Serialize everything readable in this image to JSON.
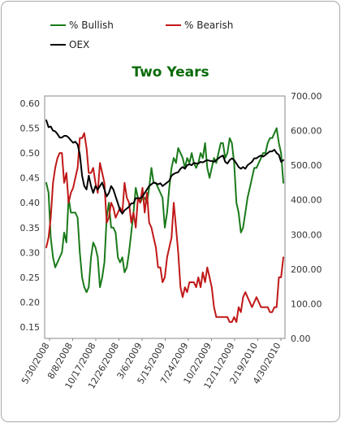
{
  "chart_data": {
    "type": "line",
    "title": "Two Years",
    "title_color": "#0a6b0a",
    "legend_position": "top-left",
    "grid": false,
    "x_tick_labels": [
      "5/30/2008",
      "8/8/2008",
      "10/17/2008",
      "12/26/2008",
      "3/6/2009",
      "5/15/2009",
      "7/24/2009",
      "10/2/2009",
      "12/11/2009",
      "2/19/2010",
      "4/30/2010"
    ],
    "y_left": {
      "lim": [
        0.15,
        0.6
      ],
      "ticks": [
        "0.60",
        "0.55",
        "0.50",
        "0.45",
        "0.40",
        "0.35",
        "0.30",
        "0.25",
        "0.20",
        "0.15"
      ]
    },
    "y_right": {
      "lim": [
        0,
        700
      ],
      "ticks": [
        "700.00",
        "600.00",
        "500.00",
        "400.00",
        "300.00",
        "200.00",
        "100.00",
        "0.00"
      ]
    },
    "x_week_range": [
      0,
      106
    ],
    "series": [
      {
        "name": "% Bullish",
        "color": "#1a7a1a",
        "axis": "left",
        "x": [
          0,
          1,
          2,
          3,
          4,
          5,
          6,
          7,
          8,
          9,
          10,
          11,
          12,
          13,
          14,
          15,
          16,
          17,
          18,
          19,
          20,
          21,
          22,
          23,
          24,
          25,
          26,
          27,
          28,
          29,
          30,
          31,
          32,
          33,
          34,
          35,
          36,
          37,
          38,
          39,
          40,
          41,
          42,
          43,
          44,
          45,
          46,
          47,
          48,
          49,
          50,
          51,
          52,
          53,
          54,
          55,
          56,
          57,
          58,
          59,
          60,
          61,
          62,
          63,
          64,
          65,
          66,
          67,
          68,
          69,
          70,
          71,
          72,
          73,
          74,
          75,
          76,
          77,
          78,
          79,
          80,
          81,
          82,
          83,
          84,
          85,
          86,
          87,
          88,
          89,
          90,
          91,
          92,
          93,
          94,
          95,
          96,
          97,
          98,
          99,
          100,
          101,
          102,
          103,
          104,
          105,
          106
        ],
        "values": [
          0.44,
          0.42,
          0.33,
          0.29,
          0.27,
          0.28,
          0.29,
          0.3,
          0.34,
          0.32,
          0.41,
          0.38,
          0.38,
          0.38,
          0.37,
          0.3,
          0.25,
          0.23,
          0.22,
          0.23,
          0.29,
          0.32,
          0.31,
          0.29,
          0.23,
          0.25,
          0.28,
          0.37,
          0.4,
          0.35,
          0.35,
          0.34,
          0.29,
          0.28,
          0.29,
          0.26,
          0.27,
          0.3,
          0.34,
          0.38,
          0.43,
          0.41,
          0.4,
          0.41,
          0.41,
          0.4,
          0.43,
          0.47,
          0.44,
          0.44,
          0.43,
          0.42,
          0.41,
          0.35,
          0.38,
          0.43,
          0.47,
          0.49,
          0.48,
          0.51,
          0.5,
          0.49,
          0.47,
          0.49,
          0.48,
          0.5,
          0.48,
          0.47,
          0.48,
          0.5,
          0.49,
          0.52,
          0.47,
          0.45,
          0.47,
          0.49,
          0.48,
          0.5,
          0.52,
          0.52,
          0.49,
          0.5,
          0.53,
          0.52,
          0.48,
          0.4,
          0.38,
          0.34,
          0.35,
          0.38,
          0.41,
          0.43,
          0.45,
          0.47,
          0.47,
          0.48,
          0.49,
          0.5,
          0.5,
          0.52,
          0.53,
          0.53,
          0.54,
          0.55,
          0.52,
          0.5,
          0.44
        ]
      },
      {
        "name": "% Bearish",
        "color": "#c01818",
        "axis": "left",
        "x": [
          0,
          1,
          2,
          3,
          4,
          5,
          6,
          7,
          8,
          9,
          10,
          11,
          12,
          13,
          14,
          15,
          16,
          17,
          18,
          19,
          20,
          21,
          22,
          23,
          24,
          25,
          26,
          27,
          28,
          29,
          30,
          31,
          32,
          33,
          34,
          35,
          36,
          37,
          38,
          39,
          40,
          41,
          42,
          43,
          44,
          45,
          46,
          47,
          48,
          49,
          50,
          51,
          52,
          53,
          54,
          55,
          56,
          57,
          58,
          59,
          60,
          61,
          62,
          63,
          64,
          65,
          66,
          67,
          68,
          69,
          70,
          71,
          72,
          73,
          74,
          75,
          76,
          77,
          78,
          79,
          80,
          81,
          82,
          83,
          84,
          85,
          86,
          87,
          88,
          89,
          90,
          91,
          92,
          93,
          94,
          95,
          96,
          97,
          98,
          99,
          100,
          101,
          102,
          103,
          104,
          105,
          106
        ],
        "values": [
          0.31,
          0.33,
          0.37,
          0.44,
          0.47,
          0.49,
          0.5,
          0.5,
          0.44,
          0.46,
          0.4,
          0.42,
          0.43,
          0.45,
          0.47,
          0.53,
          0.53,
          0.54,
          0.51,
          0.46,
          0.46,
          0.47,
          0.44,
          0.42,
          0.48,
          0.46,
          0.44,
          0.36,
          0.37,
          0.4,
          0.39,
          0.37,
          0.38,
          0.39,
          0.38,
          0.44,
          0.41,
          0.4,
          0.36,
          0.38,
          0.35,
          0.41,
          0.4,
          0.43,
          0.38,
          0.42,
          0.36,
          0.35,
          0.33,
          0.31,
          0.27,
          0.27,
          0.24,
          0.25,
          0.29,
          0.31,
          0.33,
          0.4,
          0.35,
          0.3,
          0.23,
          0.21,
          0.23,
          0.22,
          0.24,
          0.24,
          0.24,
          0.23,
          0.25,
          0.23,
          0.26,
          0.24,
          0.27,
          0.25,
          0.23,
          0.19,
          0.17,
          0.17,
          0.17,
          0.17,
          0.17,
          0.17,
          0.16,
          0.16,
          0.17,
          0.16,
          0.19,
          0.18,
          0.21,
          0.22,
          0.21,
          0.2,
          0.19,
          0.2,
          0.21,
          0.2,
          0.19,
          0.19,
          0.19,
          0.19,
          0.18,
          0.18,
          0.19,
          0.19,
          0.25,
          0.25,
          0.29
        ]
      },
      {
        "name": "OEX",
        "color": "#000000",
        "axis": "right",
        "x": [
          0,
          1,
          2,
          3,
          4,
          5,
          6,
          7,
          8,
          9,
          10,
          11,
          12,
          13,
          14,
          15,
          16,
          17,
          18,
          19,
          20,
          21,
          22,
          23,
          24,
          25,
          26,
          27,
          28,
          29,
          30,
          31,
          32,
          33,
          34,
          35,
          36,
          37,
          38,
          39,
          40,
          41,
          42,
          43,
          44,
          45,
          46,
          47,
          48,
          49,
          50,
          51,
          52,
          53,
          54,
          55,
          56,
          57,
          58,
          59,
          60,
          61,
          62,
          63,
          64,
          65,
          66,
          67,
          68,
          69,
          70,
          71,
          72,
          73,
          74,
          75,
          76,
          77,
          78,
          79,
          80,
          81,
          82,
          83,
          84,
          85,
          86,
          87,
          88,
          89,
          90,
          91,
          92,
          93,
          94,
          95,
          96,
          97,
          98,
          99,
          100,
          101,
          102,
          103,
          104,
          105,
          106
        ],
        "values": [
          630,
          610,
          612,
          600,
          598,
          590,
          580,
          580,
          585,
          585,
          580,
          572,
          565,
          568,
          560,
          532,
          470,
          440,
          430,
          470,
          440,
          420,
          440,
          430,
          440,
          450,
          430,
          410,
          420,
          440,
          430,
          410,
          390,
          370,
          360,
          370,
          375,
          380,
          390,
          390,
          405,
          405,
          405,
          410,
          420,
          430,
          440,
          445,
          450,
          448,
          445,
          448,
          440,
          445,
          450,
          455,
          470,
          475,
          478,
          480,
          490,
          495,
          490,
          500,
          503,
          500,
          507,
          505,
          505,
          510,
          508,
          512,
          515,
          513,
          512,
          510,
          515,
          520,
          525,
          528,
          510,
          505,
          515,
          520,
          515,
          505,
          495,
          490,
          495,
          490,
          500,
          505,
          510,
          520,
          520,
          525,
          528,
          525,
          530,
          535,
          540,
          540,
          545,
          535,
          530,
          510,
          515
        ]
      }
    ]
  }
}
